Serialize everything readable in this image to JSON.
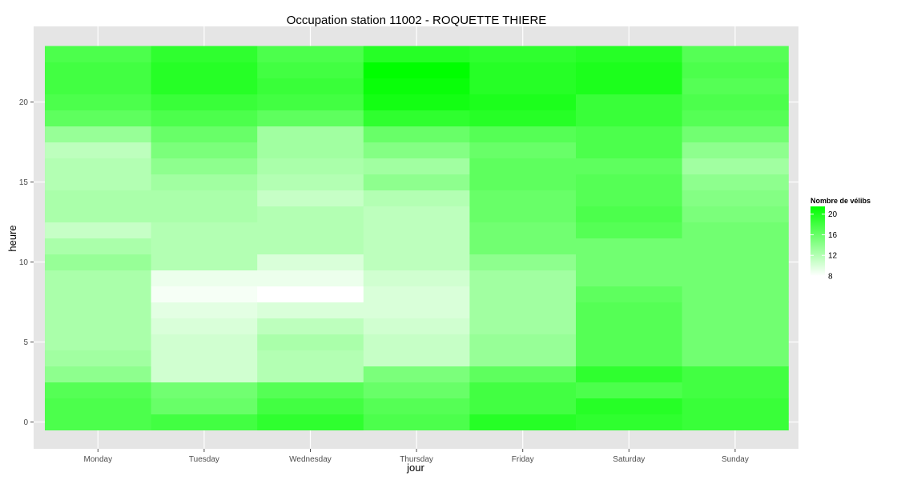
{
  "chart_data": {
    "type": "heatmap",
    "title": "Occupation station 11002 - ROQUETTE THIERE",
    "xlabel": "jour",
    "ylabel": "heure",
    "x_categories": [
      "Monday",
      "Tuesday",
      "Wednesday",
      "Thursday",
      "Friday",
      "Saturday",
      "Sunday"
    ],
    "y_hours": [
      0,
      1,
      2,
      3,
      4,
      5,
      6,
      7,
      8,
      9,
      10,
      11,
      12,
      13,
      14,
      15,
      16,
      17,
      18,
      19,
      20,
      21,
      22,
      23
    ],
    "y_ticks": [
      0,
      5,
      10,
      15,
      20
    ],
    "y_tick_labels": [
      "0",
      "5",
      "10",
      "15",
      "20"
    ],
    "ylim": [
      -0.5,
      23.5
    ],
    "values_by_day": [
      [
        17.5,
        17.5,
        17,
        14,
        13,
        12.5,
        12.5,
        12.5,
        12.5,
        12.5,
        13.5,
        12.5,
        11,
        12.5,
        12.5,
        12,
        12,
        11.5,
        13.5,
        16.5,
        17.5,
        18,
        18,
        17.5
      ],
      [
        18,
        16,
        15.5,
        10.5,
        10.5,
        10.5,
        10,
        9.5,
        8.5,
        9,
        12,
        12,
        12,
        12.5,
        12.5,
        13,
        14,
        15,
        16,
        17.5,
        18.5,
        19.5,
        19.5,
        19
      ],
      [
        19,
        18,
        17,
        12,
        12,
        12.5,
        11.5,
        10,
        8,
        9,
        10,
        12,
        12,
        12,
        11,
        12,
        12.5,
        13,
        13,
        16.5,
        18,
        18.5,
        18,
        17.5
      ],
      [
        17.5,
        17,
        16,
        15,
        11,
        11,
        10.5,
        10,
        10,
        10.5,
        11.5,
        11.5,
        11.5,
        11.5,
        12,
        14,
        13,
        14.5,
        16,
        19,
        20.5,
        21,
        21.5,
        19.5
      ],
      [
        19.5,
        18,
        18,
        16.5,
        13.5,
        13.5,
        13,
        13,
        13,
        13,
        14,
        15.5,
        15.5,
        16,
        16,
        16.5,
        16.5,
        16,
        17,
        19.5,
        20,
        19.5,
        19.5,
        19
      ],
      [
        19,
        19.5,
        17.5,
        19,
        17,
        17,
        17,
        17,
        16.5,
        15.5,
        15.5,
        15.5,
        17,
        17.5,
        17,
        17,
        16.5,
        17.5,
        17.5,
        18.5,
        18.5,
        20,
        20,
        19.5
      ],
      [
        18.5,
        18.5,
        18,
        18,
        15.5,
        15.5,
        15.5,
        15.5,
        15.5,
        15.5,
        15.5,
        15.5,
        15.5,
        15,
        14.5,
        14,
        13,
        14,
        15.5,
        17,
        17.5,
        17,
        17.5,
        17
      ]
    ],
    "legend": {
      "title": "Nombre de vélibs",
      "position": "right",
      "breaks": [
        20,
        16,
        12,
        8
      ],
      "break_labels": [
        "20",
        "16",
        "12",
        "8"
      ],
      "range": [
        8,
        21.5
      ],
      "low_color": "#ffffff",
      "high_color": "#00ff00"
    },
    "panel_background": "#e5e5e5",
    "grid_color": "#ffffff",
    "grid": true
  }
}
